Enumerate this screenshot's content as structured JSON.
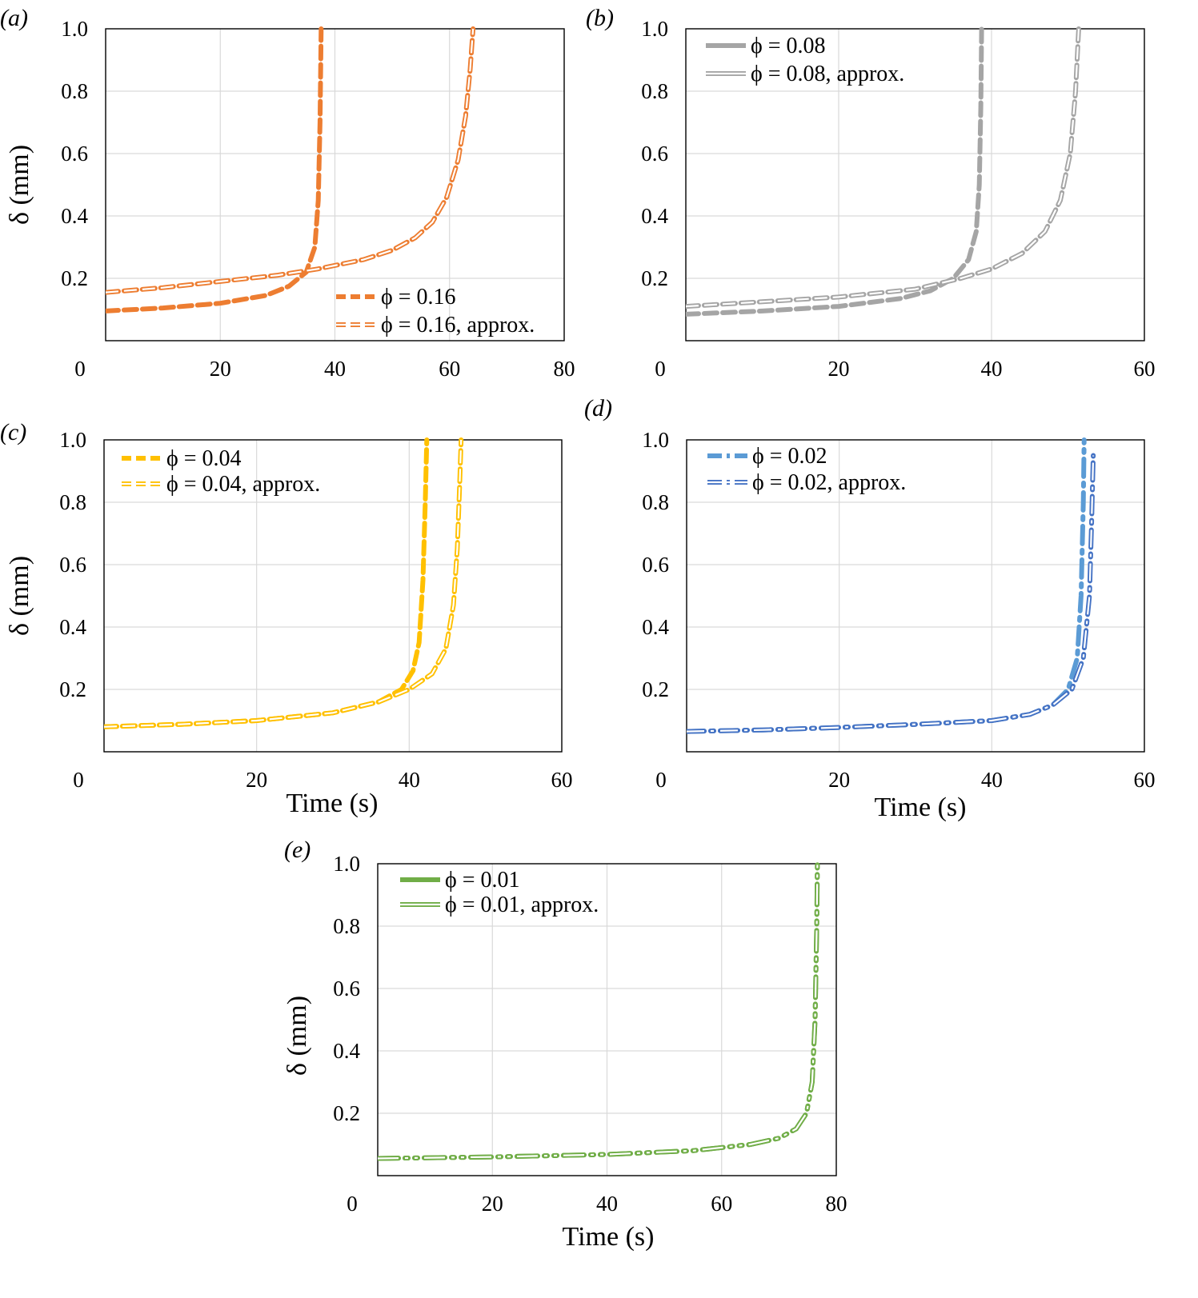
{
  "chart_data": [
    {
      "panel_label": "(a)",
      "type": "line",
      "xlabel": "",
      "ylabel": "δ (mm)",
      "xlim": [
        0,
        80
      ],
      "ylim": [
        0,
        1.0
      ],
      "xticks": [
        "0",
        "20",
        "40",
        "60",
        "80"
      ],
      "yticks": [
        "0.2",
        "0.4",
        "0.6",
        "0.8",
        "1.0"
      ],
      "grid": true,
      "legend_position": "bottom-right",
      "series": [
        {
          "name": "ϕ = 0.16",
          "color": "#ED7D31",
          "style": "dashed",
          "x": [
            0,
            10,
            20,
            28,
            32,
            35,
            36.5,
            37.1,
            37.4,
            37.6
          ],
          "y": [
            0.095,
            0.105,
            0.12,
            0.145,
            0.175,
            0.22,
            0.3,
            0.45,
            0.7,
            1.0
          ]
        },
        {
          "name": "ϕ = 0.16, approx.",
          "color": "#ED7D31",
          "style": "dashed-outline",
          "x": [
            0,
            10,
            20,
            30,
            37,
            45,
            50,
            54,
            57,
            59.5,
            61.5,
            62.8,
            63.6,
            64.1
          ],
          "y": [
            0.155,
            0.17,
            0.19,
            0.21,
            0.23,
            0.26,
            0.29,
            0.33,
            0.38,
            0.46,
            0.58,
            0.72,
            0.87,
            1.0
          ]
        }
      ]
    },
    {
      "panel_label": "(b)",
      "type": "line",
      "xlabel": "",
      "ylabel": "",
      "xlim": [
        0,
        60
      ],
      "ylim": [
        0,
        1.0
      ],
      "xticks": [
        "0",
        "20",
        "40",
        "60"
      ],
      "yticks": [
        "0.2",
        "0.4",
        "0.6",
        "0.8",
        "1.0"
      ],
      "grid": true,
      "legend_position": "top-left",
      "series": [
        {
          "name": "ϕ = 0.08",
          "color": "#A5A5A5",
          "style": "dashed",
          "x": [
            0,
            10,
            20,
            28,
            32,
            35,
            37,
            38,
            38.4,
            38.6,
            38.7
          ],
          "y": [
            0.085,
            0.095,
            0.11,
            0.135,
            0.16,
            0.2,
            0.26,
            0.35,
            0.5,
            0.75,
            1.0
          ]
        },
        {
          "name": "ϕ = 0.08, approx.",
          "color": "#A5A5A5",
          "style": "dashed-outline",
          "x": [
            0,
            10,
            20,
            30,
            36,
            40,
            44,
            47,
            49,
            50.3,
            51,
            51.4
          ],
          "y": [
            0.11,
            0.125,
            0.14,
            0.165,
            0.2,
            0.23,
            0.28,
            0.35,
            0.45,
            0.6,
            0.8,
            1.0
          ]
        }
      ]
    },
    {
      "panel_label": "(c)",
      "type": "line",
      "xlabel": "Time (s)",
      "ylabel": "δ (mm)",
      "xlim": [
        0,
        60
      ],
      "ylim": [
        0,
        1.0
      ],
      "xticks": [
        "0",
        "20",
        "40",
        "60"
      ],
      "yticks": [
        "0.2",
        "0.4",
        "0.6",
        "0.8",
        "1.0"
      ],
      "grid": true,
      "legend_position": "top-left",
      "series": [
        {
          "name": "ϕ = 0.04",
          "color": "#FFC000",
          "style": "dashed",
          "x": [
            0,
            10,
            20,
            30,
            36,
            39,
            40.5,
            41.3,
            41.8,
            42.1,
            42.3
          ],
          "y": [
            0.08,
            0.088,
            0.1,
            0.125,
            0.16,
            0.2,
            0.26,
            0.35,
            0.55,
            0.8,
            1.0
          ]
        },
        {
          "name": "ϕ = 0.04, approx.",
          "color": "#FFC000",
          "style": "dashed-outline",
          "x": [
            0,
            10,
            20,
            30,
            36,
            40,
            43,
            44.8,
            45.8,
            46.3,
            46.6,
            46.8
          ],
          "y": [
            0.08,
            0.088,
            0.1,
            0.125,
            0.16,
            0.2,
            0.25,
            0.33,
            0.47,
            0.65,
            0.85,
            1.0
          ]
        }
      ]
    },
    {
      "panel_label": "(d)",
      "type": "line",
      "xlabel": "Time (s)",
      "ylabel": "",
      "xlim": [
        0,
        60
      ],
      "ylim": [
        0,
        1.0
      ],
      "xticks": [
        "0",
        "20",
        "40",
        "60"
      ],
      "yticks": [
        "0.2",
        "0.4",
        "0.6",
        "0.8",
        "1.0"
      ],
      "grid": true,
      "legend_position": "top-left",
      "series": [
        {
          "name": "ϕ = 0.02",
          "color": "#5B9BD5",
          "style": "dash-dot",
          "x": [
            0,
            10,
            20,
            30,
            40,
            45,
            48,
            50,
            51.2,
            51.7,
            52,
            52.1
          ],
          "y": [
            0.065,
            0.07,
            0.078,
            0.088,
            0.1,
            0.12,
            0.15,
            0.2,
            0.3,
            0.5,
            0.8,
            1.0
          ]
        },
        {
          "name": "ϕ = 0.02, approx.",
          "color": "#4472C4",
          "style": "dash-dot-outline",
          "x": [
            0,
            10,
            20,
            30,
            40,
            45,
            48,
            50.5,
            52,
            52.8,
            53.1,
            53.3
          ],
          "y": [
            0.065,
            0.07,
            0.078,
            0.088,
            0.1,
            0.12,
            0.15,
            0.2,
            0.3,
            0.5,
            0.75,
            0.95
          ]
        }
      ]
    },
    {
      "panel_label": "(e)",
      "type": "line",
      "xlabel": "Time (s)",
      "ylabel": "δ (mm)",
      "xlim": [
        0,
        80
      ],
      "ylim": [
        0,
        1.0
      ],
      "xticks": [
        "0",
        "20",
        "40",
        "60",
        "80"
      ],
      "yticks": [
        "0.2",
        "0.4",
        "0.6",
        "0.8",
        "1.0"
      ],
      "grid": true,
      "legend_position": "top-left",
      "series": [
        {
          "name": "ϕ = 0.01",
          "color": "#70AD47",
          "style": "dash-dot-dot",
          "x": [
            0,
            20,
            40,
            55,
            65,
            70,
            73,
            74.8,
            75.8,
            76.3,
            76.6,
            76.7
          ],
          "y": [
            0.055,
            0.06,
            0.068,
            0.08,
            0.1,
            0.12,
            0.15,
            0.2,
            0.3,
            0.5,
            0.8,
            1.0
          ]
        },
        {
          "name": "ϕ = 0.01, approx.",
          "color": "#70AD47",
          "style": "dash-dot-dot-outline",
          "x": [
            0,
            20,
            40,
            55,
            65,
            70,
            73,
            74.8,
            75.8,
            76.3,
            76.6,
            76.7
          ],
          "y": [
            0.055,
            0.06,
            0.068,
            0.08,
            0.1,
            0.12,
            0.15,
            0.2,
            0.3,
            0.5,
            0.8,
            1.0
          ]
        }
      ]
    }
  ]
}
